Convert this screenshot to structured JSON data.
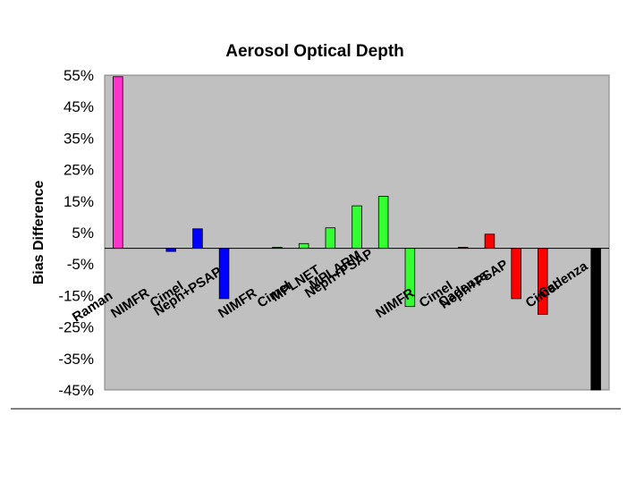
{
  "chart_data": {
    "type": "bar",
    "title": "Aerosol Optical Depth",
    "xlabel": "",
    "ylabel": "Bias Difference",
    "ylim": [
      -45,
      55
    ],
    "yticks": [
      "55%",
      "45%",
      "35%",
      "25%",
      "15%",
      "5%",
      "-5%",
      "-15%",
      "-25%",
      "-35%",
      "-45%"
    ],
    "grid": false,
    "categories": [
      "Raman",
      "NIMFR",
      "Cimel",
      "Neph+PSAP",
      "NIMFR",
      "Cimel",
      "MPLNET",
      "MPLARM",
      "Neph+PSAP",
      "NIMFR",
      "Cimel",
      "Cadenza",
      "Neph+PSAP",
      "Cimel",
      "Cadenza"
    ],
    "bars": [
      {
        "value": 54.5,
        "color": "#ff33cc"
      },
      {
        "value": -1.0,
        "color": "#0000ff"
      },
      {
        "value": 6.2,
        "color": "#0000ff"
      },
      {
        "value": -16.0,
        "color": "#0000ff"
      },
      {
        "value": 0.3,
        "color": "#33ff33"
      },
      {
        "value": 1.5,
        "color": "#33ff33"
      },
      {
        "value": 6.5,
        "color": "#33ff33"
      },
      {
        "value": 13.5,
        "color": "#33ff33"
      },
      {
        "value": 16.5,
        "color": "#33ff33"
      },
      {
        "value": -18.5,
        "color": "#33ff33"
      },
      {
        "value": 0.3,
        "color": "#ff0000"
      },
      {
        "value": 4.5,
        "color": "#ff0000"
      },
      {
        "value": -16.0,
        "color": "#ff0000"
      },
      {
        "value": -21.0,
        "color": "#ff0000"
      },
      {
        "value": -45.0,
        "color": "#000000"
      }
    ],
    "colors": {
      "plot_background": "#c0c0c0",
      "magenta": "#ff33cc",
      "blue": "#0000ff",
      "green": "#33ff33",
      "red": "#ff0000",
      "black": "#000000"
    }
  }
}
